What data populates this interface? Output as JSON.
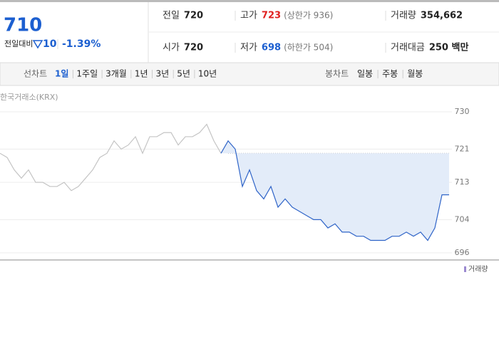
{
  "header": {
    "price": "710",
    "change_label": "전일대비",
    "change": "10",
    "change_rate": "-1.39%",
    "stats": [
      {
        "label": "전일",
        "value": "720"
      },
      {
        "label": "고가",
        "value": "723",
        "note": "(상한가 936)"
      },
      {
        "label": "거래량",
        "value": "354,662"
      },
      {
        "label": "시가",
        "value": "720"
      },
      {
        "label": "저가",
        "value": "698",
        "note": "(하한가 504)"
      },
      {
        "label": "거래대금",
        "value": "250 백만"
      }
    ]
  },
  "tabs": {
    "line_label": "선차트",
    "line_periods": [
      "1일",
      "1주일",
      "3개월",
      "1년",
      "3년",
      "5년",
      "10년"
    ],
    "candle_label": "봉차트",
    "candle_periods": [
      "일봉",
      "주봉",
      "월봉"
    ]
  },
  "chart_data": {
    "type": "line",
    "source": "한국거래소(KRX)",
    "ylim": [
      696,
      730
    ],
    "yticks": [
      696,
      704,
      713,
      721,
      730
    ],
    "grid": true,
    "volume_label": "거래량",
    "series": [
      {
        "color": "#c4c4c4",
        "values": [
          720,
          719,
          716,
          714,
          716,
          713,
          713,
          712,
          712,
          713,
          711,
          712,
          714,
          716,
          719,
          720,
          723,
          721,
          722,
          724,
          720,
          724,
          724,
          725,
          725,
          722,
          724,
          724,
          725,
          727,
          723,
          720,
          null,
          null,
          null,
          null,
          null,
          null,
          null,
          null,
          null,
          null,
          null,
          null,
          null,
          null,
          null,
          null,
          null,
          null,
          null,
          null,
          null,
          null,
          null,
          null,
          null,
          null,
          null,
          null,
          null,
          null,
          null,
          null
        ]
      },
      {
        "color": "#2f64c8",
        "fill": "#e3ecf9",
        "values": [
          null,
          null,
          null,
          null,
          null,
          null,
          null,
          null,
          null,
          null,
          null,
          null,
          null,
          null,
          null,
          null,
          null,
          null,
          null,
          null,
          null,
          null,
          null,
          null,
          null,
          null,
          null,
          null,
          null,
          null,
          null,
          720,
          723,
          721,
          712,
          716,
          711,
          709,
          712,
          707,
          709,
          707,
          706,
          705,
          704,
          704,
          702,
          703,
          701,
          701,
          700,
          700,
          699,
          699,
          699,
          700,
          700,
          701,
          700,
          701,
          699,
          702,
          710,
          710
        ]
      }
    ]
  }
}
